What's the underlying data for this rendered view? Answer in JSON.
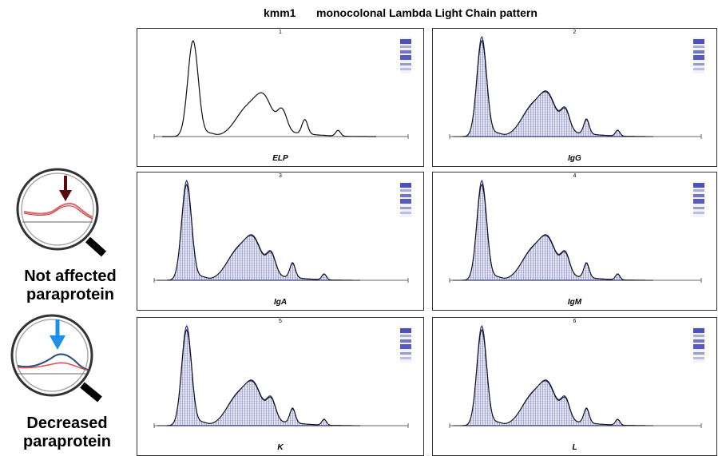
{
  "header": {
    "id": "kmm1",
    "title": "monocolonal Lambda Light Chain pattern"
  },
  "panels": [
    {
      "number": "1",
      "label": "ELP"
    },
    {
      "number": "2",
      "label": "IgG"
    },
    {
      "number": "3",
      "label": "IgA"
    },
    {
      "number": "4",
      "label": "IgM"
    },
    {
      "number": "5",
      "label": "K"
    },
    {
      "number": "6",
      "label": "L"
    }
  ],
  "legend": [
    {
      "line1": "Not affected",
      "line2": "paraprotein"
    },
    {
      "line1": "Decreased",
      "line2": "paraprotein"
    }
  ]
}
